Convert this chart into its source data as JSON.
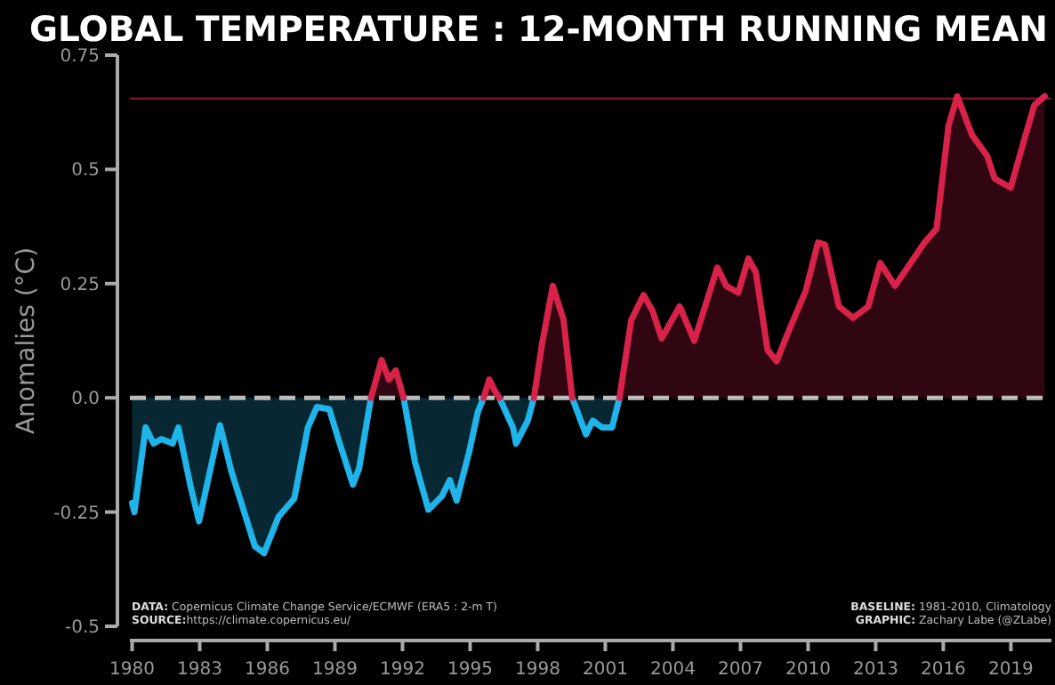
{
  "chart_data": {
    "type": "area",
    "title": "GLOBAL TEMPERATURE : 12-MONTH RUNNING MEAN",
    "ylabel": "Anomalies (°C)",
    "x": [
      1980.0,
      1980.1,
      1980.6,
      1980.95,
      1981.3,
      1981.8,
      1982.05,
      1982.6,
      1982.97,
      1983.9,
      1984.4,
      1985.45,
      1985.85,
      1986.5,
      1987.2,
      1987.8,
      1988.2,
      1988.75,
      1989.15,
      1989.8,
      1990.07,
      1990.6,
      1991.07,
      1991.4,
      1991.7,
      1992.05,
      1992.55,
      1993.15,
      1993.75,
      1994.1,
      1994.4,
      1994.95,
      1995.35,
      1995.6,
      1995.85,
      1996.1,
      1996.3,
      1996.9,
      1997.04,
      1997.56,
      1997.83,
      1998.2,
      1998.67,
      1999.15,
      1999.53,
      2000.14,
      2000.45,
      2000.85,
      2001.3,
      2001.63,
      2002.15,
      2002.7,
      2003.1,
      2003.5,
      2004.3,
      2004.95,
      2005.97,
      2006.37,
      2006.9,
      2007.35,
      2007.68,
      2008.2,
      2008.6,
      2009.13,
      2009.9,
      2010.44,
      2010.75,
      2011.37,
      2012.0,
      2012.67,
      2013.2,
      2013.86,
      2015.17,
      2015.7,
      2016.23,
      2016.62,
      2017.28,
      2017.94,
      2018.28,
      2018.99,
      2019.65,
      2020.04,
      2020.5
    ],
    "series": [
      {
        "color": "#1fb4ea",
        "values": [
          -0.23,
          -0.25,
          -0.065,
          -0.1,
          -0.09,
          -0.1,
          -0.065,
          -0.195,
          -0.27,
          -0.06,
          -0.16,
          -0.325,
          -0.34,
          -0.26,
          -0.22,
          -0.065,
          -0.02,
          -0.025,
          -0.09,
          -0.19,
          -0.155,
          0.0,
          null,
          null,
          null,
          0.0,
          -0.14,
          -0.245,
          -0.215,
          -0.18,
          -0.225,
          -0.12,
          -0.03,
          0.0,
          null,
          null,
          0.0,
          -0.065,
          -0.1,
          -0.05,
          0.0,
          null,
          null,
          null,
          0.0,
          -0.08,
          -0.05,
          -0.065,
          -0.065,
          0.0,
          null,
          null,
          null,
          null,
          null,
          null,
          null,
          null,
          null,
          null,
          null,
          null,
          null,
          null,
          null,
          null,
          null,
          null,
          null,
          null,
          null,
          null,
          null,
          null,
          null,
          null,
          null,
          null,
          null,
          null,
          null,
          null,
          null
        ]
      },
      {
        "color": "#d9224a",
        "values": [
          null,
          null,
          null,
          null,
          null,
          null,
          null,
          null,
          null,
          null,
          null,
          null,
          null,
          null,
          null,
          null,
          null,
          null,
          null,
          null,
          null,
          0.0,
          0.083,
          0.04,
          0.06,
          0.0,
          null,
          null,
          null,
          null,
          null,
          null,
          null,
          0.0,
          0.04,
          0.015,
          0.0,
          null,
          null,
          null,
          0.0,
          0.12,
          0.245,
          0.17,
          0.0,
          null,
          null,
          null,
          null,
          0.0,
          0.17,
          0.225,
          0.19,
          0.13,
          0.2,
          0.125,
          0.285,
          0.245,
          0.23,
          0.305,
          0.275,
          0.105,
          0.08,
          0.145,
          0.235,
          0.34,
          0.335,
          0.2,
          0.175,
          0.2,
          0.295,
          0.245,
          0.34,
          0.37,
          0.595,
          0.66,
          0.575,
          0.53,
          0.48,
          0.46,
          0.575,
          0.64,
          0.66
        ]
      }
    ],
    "xlim": [
      1979.9,
      2020.8
    ],
    "xticks": [
      1980,
      1983,
      1986,
      1989,
      1992,
      1995,
      1998,
      2001,
      2004,
      2007,
      2010,
      2013,
      2016,
      2019
    ],
    "ylim": [
      -0.5,
      0.75
    ],
    "yticks": [
      -0.5,
      -0.25,
      {
        "value": 0,
        "label": "0.0"
      },
      0.25,
      0.5,
      0.75
    ],
    "ref_lines": [
      {
        "axis": "y",
        "value": 0.655,
        "color": "#8b1a2b"
      },
      {
        "axis": "y",
        "value": 0,
        "color": "#bbbbbb",
        "line_style": "dashed"
      }
    ],
    "annotations": [
      "DATA: Copernicus Climate Change Service/ECMWF (ERA5 : 2-m T)",
      "SOURCE:https://climate.copernicus.eu/",
      "BASELINE: 1981-2010, Climatology",
      "GRAPHIC: Zachary Labe (@ZLabe)"
    ]
  }
}
